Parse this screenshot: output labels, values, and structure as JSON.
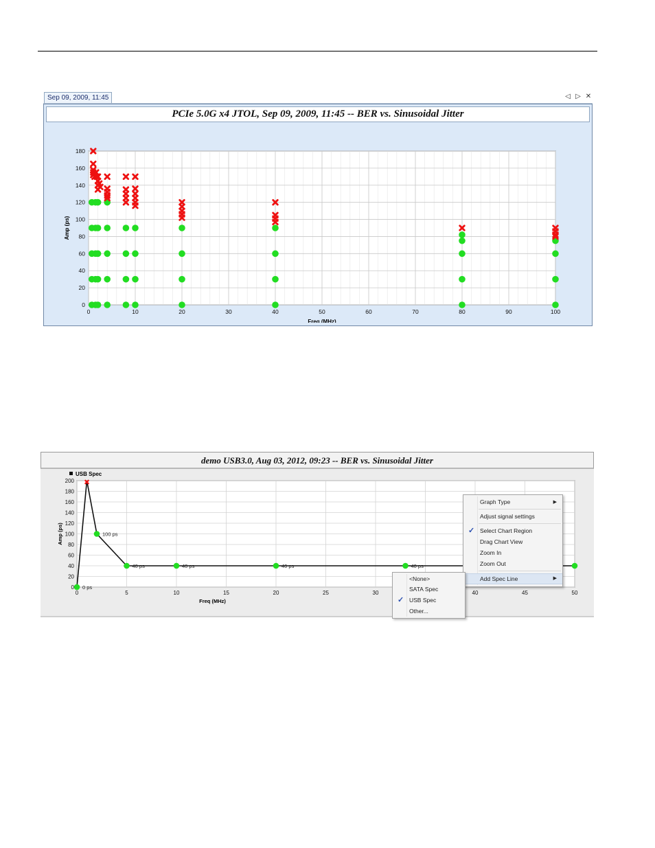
{
  "panel1": {
    "tab_label": "Sep 09, 2009, 11:45",
    "controls": {
      "prev_icon": "◁",
      "next_icon": "▷",
      "close_icon": "✕"
    },
    "title": "PCIe 5.0G x4 JTOL, Sep 09, 2009, 11:45 -- BER vs. Sinusoidal Jitter"
  },
  "panel2": {
    "title": "demo USB3.0, Aug 03, 2012, 09:23 -- BER vs. Sinusoidal Jitter"
  },
  "chart_data": [
    {
      "type": "scatter",
      "title": "PCIe 5.0G x4 JTOL, Sep 09, 2009, 11:45 -- BER vs. Sinusoidal Jitter",
      "xlabel": "Freq (MHz)",
      "ylabel": "Amp (ps)",
      "xlim": [
        0,
        100
      ],
      "ylim": [
        0,
        180
      ],
      "xticks": [
        0,
        10,
        20,
        30,
        40,
        50,
        60,
        70,
        80,
        90,
        100
      ],
      "yticks": [
        0,
        20,
        40,
        60,
        80,
        100,
        120,
        140,
        160,
        180
      ],
      "grid": true,
      "colors": {
        "pass": "#22dd22",
        "fail": "#ee1111"
      },
      "series": [
        {
          "marker": "circle",
          "points": [
            [
              0.7,
              0
            ],
            [
              1.5,
              0
            ],
            [
              2,
              0
            ],
            [
              4,
              0
            ],
            [
              8,
              0
            ],
            [
              10,
              0
            ],
            [
              20,
              0
            ],
            [
              40,
              0
            ],
            [
              80,
              0
            ],
            [
              100,
              0
            ],
            [
              0.7,
              30
            ],
            [
              1.5,
              30
            ],
            [
              2,
              30
            ],
            [
              4,
              30
            ],
            [
              8,
              30
            ],
            [
              10,
              30
            ],
            [
              20,
              30
            ],
            [
              40,
              30
            ],
            [
              80,
              30
            ],
            [
              100,
              30
            ],
            [
              0.7,
              60
            ],
            [
              1.5,
              60
            ],
            [
              2,
              60
            ],
            [
              4,
              60
            ],
            [
              8,
              60
            ],
            [
              10,
              60
            ],
            [
              20,
              60
            ],
            [
              40,
              60
            ],
            [
              80,
              60
            ],
            [
              100,
              60
            ],
            [
              0.7,
              90
            ],
            [
              1.5,
              90
            ],
            [
              2,
              90
            ],
            [
              4,
              90
            ],
            [
              8,
              90
            ],
            [
              10,
              90
            ],
            [
              20,
              90
            ],
            [
              40,
              90
            ],
            [
              0.7,
              120
            ],
            [
              1.5,
              120
            ],
            [
              2,
              120
            ],
            [
              4,
              120
            ],
            [
              80,
              75
            ],
            [
              80,
              82
            ],
            [
              100,
              75
            ]
          ]
        },
        {
          "marker": "x",
          "points": [
            [
              1,
              180
            ],
            [
              1,
              165
            ],
            [
              1,
              158
            ],
            [
              1,
              155
            ],
            [
              1,
              152
            ],
            [
              1.3,
              150
            ],
            [
              1.6,
              155
            ],
            [
              1.8,
              150
            ],
            [
              2,
              150
            ],
            [
              2,
              145
            ],
            [
              2,
              140
            ],
            [
              2,
              135
            ],
            [
              2.3,
              142
            ],
            [
              2.5,
              138
            ],
            [
              4,
              150
            ],
            [
              4,
              136
            ],
            [
              4,
              132
            ],
            [
              4,
              128
            ],
            [
              4,
              125
            ],
            [
              8,
              150
            ],
            [
              8,
              135
            ],
            [
              8,
              130
            ],
            [
              8,
              125
            ],
            [
              8,
              120
            ],
            [
              10,
              150
            ],
            [
              10,
              136
            ],
            [
              10,
              130
            ],
            [
              10,
              125
            ],
            [
              10,
              120
            ],
            [
              10,
              116
            ],
            [
              20,
              120
            ],
            [
              20,
              115
            ],
            [
              20,
              110
            ],
            [
              20,
              106
            ],
            [
              20,
              102
            ],
            [
              40,
              120
            ],
            [
              40,
              105
            ],
            [
              40,
              101
            ],
            [
              40,
              97
            ],
            [
              80,
              90
            ],
            [
              100,
              90
            ],
            [
              100,
              86
            ],
            [
              100,
              82
            ],
            [
              100,
              80
            ]
          ]
        }
      ]
    },
    {
      "type": "line",
      "title": "demo USB3.0, Aug 03, 2012, 09:23 -- BER vs. Sinusoidal Jitter",
      "xlabel": "Freq (MHz)",
      "ylabel": "Amp (ps)",
      "xlim": [
        0,
        50
      ],
      "ylim": [
        0,
        200
      ],
      "xticks": [
        0,
        5,
        10,
        15,
        20,
        25,
        30,
        35,
        40,
        45,
        50
      ],
      "yticks": [
        0,
        20,
        40,
        60,
        80,
        100,
        120,
        140,
        160,
        180,
        200
      ],
      "grid": true,
      "legend": {
        "position": "top-left",
        "entries": [
          "USB Spec"
        ]
      },
      "spec_line": {
        "name": "USB Spec",
        "x": [
          0,
          1,
          2,
          5,
          50
        ],
        "y": [
          0,
          200,
          100,
          40,
          40
        ]
      },
      "pass_points": [
        [
          0,
          0
        ],
        [
          2,
          100
        ],
        [
          5,
          40
        ],
        [
          10,
          40
        ],
        [
          20,
          40
        ],
        [
          33,
          40
        ],
        [
          50,
          40
        ]
      ],
      "fail_points": [
        [
          1,
          200
        ]
      ],
      "labels": [
        {
          "x": 0,
          "y": 0,
          "text": "0 ps"
        },
        {
          "x": 2,
          "y": 100,
          "text": "100 ps"
        },
        {
          "x": 5,
          "y": 40,
          "text": "40 ps"
        },
        {
          "x": 10,
          "y": 40,
          "text": "40 ps"
        },
        {
          "x": 20,
          "y": 40,
          "text": "40 ps"
        },
        {
          "x": 33,
          "y": 40,
          "text": "40 ps"
        }
      ]
    }
  ],
  "context_menu": {
    "items": [
      {
        "label": "Graph Type",
        "submenu": true
      },
      {
        "separator": true
      },
      {
        "label": "Adjust signal settings"
      },
      {
        "separator": true
      },
      {
        "label": "Select Chart Region",
        "checked": true
      },
      {
        "label": "Drag Chart View"
      },
      {
        "label": "Zoom In"
      },
      {
        "label": "Zoom Out"
      },
      {
        "separator": true
      },
      {
        "label": "Add Spec Line",
        "submenu": true,
        "highlighted": true
      }
    ],
    "submenu_items": [
      {
        "label": "<None>"
      },
      {
        "label": "SATA Spec"
      },
      {
        "label": "USB Spec",
        "checked": true
      },
      {
        "label": "Other..."
      }
    ]
  }
}
